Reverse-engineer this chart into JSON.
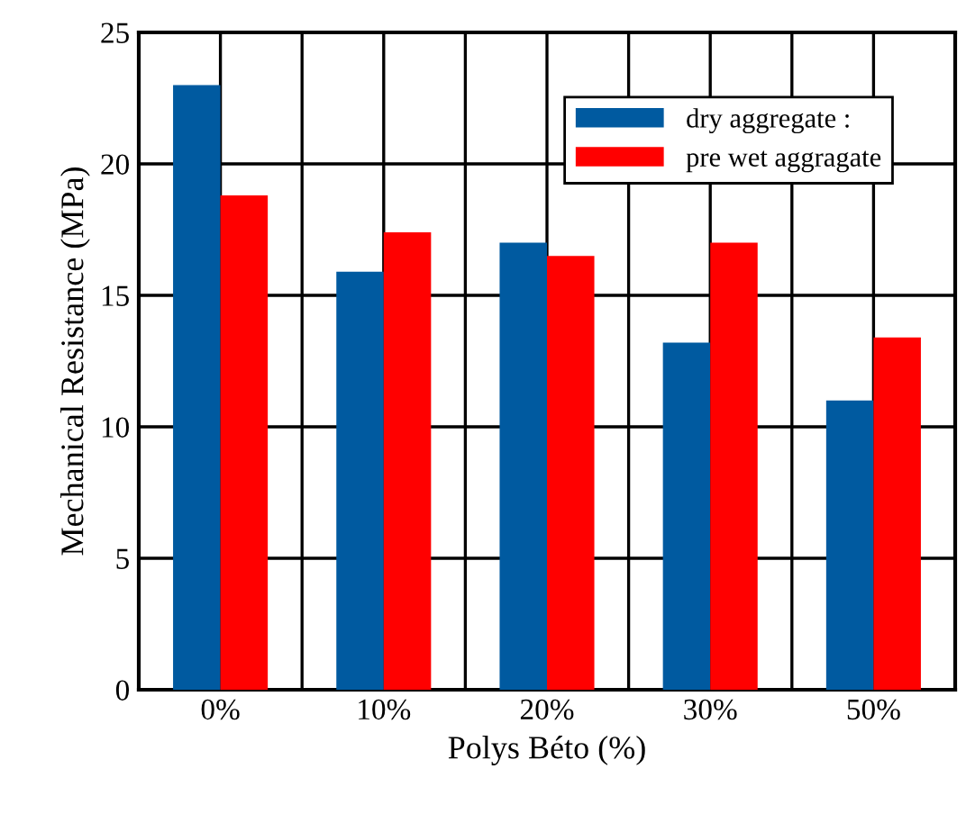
{
  "chart_data": {
    "type": "bar",
    "xlabel": "Polys Béto (%)",
    "ylabel": "Mechanical Resistance (MPa)",
    "categories": [
      "0%",
      "10%",
      "20%",
      "30%",
      "50%"
    ],
    "series": [
      {
        "name": "dry aggregate :",
        "color": "#005aa0",
        "values": [
          23,
          15.9,
          17.0,
          13.2,
          11.0
        ]
      },
      {
        "name": "pre wet aggragate",
        "color": "#ff0000",
        "values": [
          18.8,
          17.4,
          16.5,
          17.0,
          13.4
        ]
      }
    ],
    "ylim": [
      0,
      25
    ],
    "yticks": [
      0,
      5,
      10,
      15,
      20,
      25
    ],
    "grid": true,
    "legend": "top right"
  }
}
